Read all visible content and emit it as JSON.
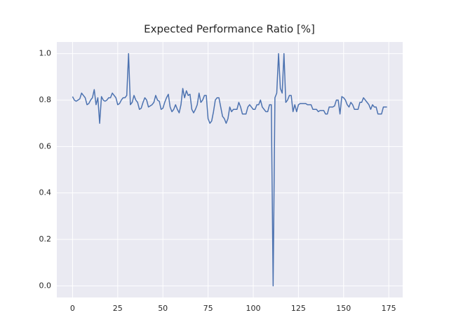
{
  "chart_data": {
    "type": "line",
    "title": "Expected Performance Ratio [%]",
    "x": [
      0,
      1,
      2,
      3,
      4,
      5,
      6,
      7,
      8,
      9,
      10,
      11,
      12,
      13,
      14,
      15,
      16,
      17,
      18,
      19,
      20,
      21,
      22,
      23,
      24,
      25,
      26,
      27,
      28,
      29,
      30,
      31,
      32,
      33,
      34,
      35,
      36,
      37,
      38,
      39,
      40,
      41,
      42,
      43,
      44,
      45,
      46,
      47,
      48,
      49,
      50,
      51,
      52,
      53,
      54,
      55,
      56,
      57,
      58,
      59,
      60,
      61,
      62,
      63,
      64,
      65,
      66,
      67,
      68,
      69,
      70,
      71,
      72,
      73,
      74,
      75,
      76,
      77,
      78,
      79,
      80,
      81,
      82,
      83,
      84,
      85,
      86,
      87,
      88,
      89,
      90,
      91,
      92,
      93,
      94,
      95,
      96,
      97,
      98,
      99,
      100,
      101,
      102,
      103,
      104,
      105,
      106,
      107,
      108,
      109,
      110,
      111,
      112,
      113,
      114,
      115,
      116,
      117,
      118,
      119,
      120,
      121,
      122,
      123,
      124,
      125,
      126,
      127,
      128,
      129,
      130,
      131,
      132,
      133,
      134,
      135,
      136,
      137,
      138,
      139,
      140,
      141,
      142,
      143,
      144,
      145,
      146,
      147,
      148,
      149,
      150,
      151,
      152,
      153,
      154,
      155,
      156,
      157,
      158,
      159,
      160,
      161,
      162,
      163,
      164,
      165,
      166,
      167,
      168,
      169,
      170,
      171,
      172,
      173,
      174
    ],
    "series": [
      {
        "color": "#4c72b0",
        "values": [
          0.815,
          0.8,
          0.795,
          0.8,
          0.805,
          0.83,
          0.82,
          0.81,
          0.78,
          0.785,
          0.8,
          0.81,
          0.845,
          0.78,
          0.81,
          0.7,
          0.815,
          0.8,
          0.795,
          0.8,
          0.81,
          0.81,
          0.83,
          0.82,
          0.81,
          0.78,
          0.785,
          0.8,
          0.81,
          0.81,
          0.82,
          1.0,
          0.78,
          0.79,
          0.82,
          0.8,
          0.79,
          0.76,
          0.765,
          0.79,
          0.81,
          0.8,
          0.77,
          0.775,
          0.78,
          0.79,
          0.82,
          0.8,
          0.795,
          0.76,
          0.765,
          0.79,
          0.81,
          0.825,
          0.77,
          0.75,
          0.76,
          0.78,
          0.76,
          0.745,
          0.78,
          0.85,
          0.81,
          0.84,
          0.82,
          0.825,
          0.76,
          0.745,
          0.76,
          0.78,
          0.83,
          0.79,
          0.8,
          0.82,
          0.82,
          0.72,
          0.7,
          0.71,
          0.75,
          0.8,
          0.81,
          0.81,
          0.77,
          0.73,
          0.72,
          0.7,
          0.72,
          0.77,
          0.75,
          0.76,
          0.76,
          0.76,
          0.79,
          0.77,
          0.74,
          0.74,
          0.74,
          0.77,
          0.78,
          0.77,
          0.76,
          0.76,
          0.78,
          0.78,
          0.8,
          0.77,
          0.76,
          0.75,
          0.75,
          0.78,
          0.78,
          0.0,
          0.81,
          0.83,
          1.0,
          0.85,
          0.83,
          1.0,
          0.79,
          0.8,
          0.82,
          0.82,
          0.75,
          0.78,
          0.75,
          0.78,
          0.785,
          0.785,
          0.785,
          0.785,
          0.78,
          0.78,
          0.78,
          0.76,
          0.76,
          0.76,
          0.75,
          0.755,
          0.755,
          0.755,
          0.74,
          0.74,
          0.77,
          0.77,
          0.77,
          0.775,
          0.8,
          0.8,
          0.74,
          0.815,
          0.81,
          0.8,
          0.78,
          0.77,
          0.79,
          0.78,
          0.76,
          0.76,
          0.76,
          0.79,
          0.79,
          0.81,
          0.8,
          0.79,
          0.78,
          0.76,
          0.78,
          0.77,
          0.77,
          0.74,
          0.74,
          0.74,
          0.77,
          0.77,
          0.77
        ]
      }
    ],
    "xlim": [
      -8.7,
      182.7
    ],
    "ylim": [
      -0.05,
      1.05
    ],
    "xticks": [
      0,
      25,
      50,
      75,
      100,
      125,
      150,
      175
    ],
    "yticks": [
      {
        "value": 0,
        "label": "0.0"
      },
      0.2,
      0.4,
      0.6,
      0.8,
      {
        "value": 1,
        "label": "1.0"
      }
    ],
    "grid": true
  }
}
